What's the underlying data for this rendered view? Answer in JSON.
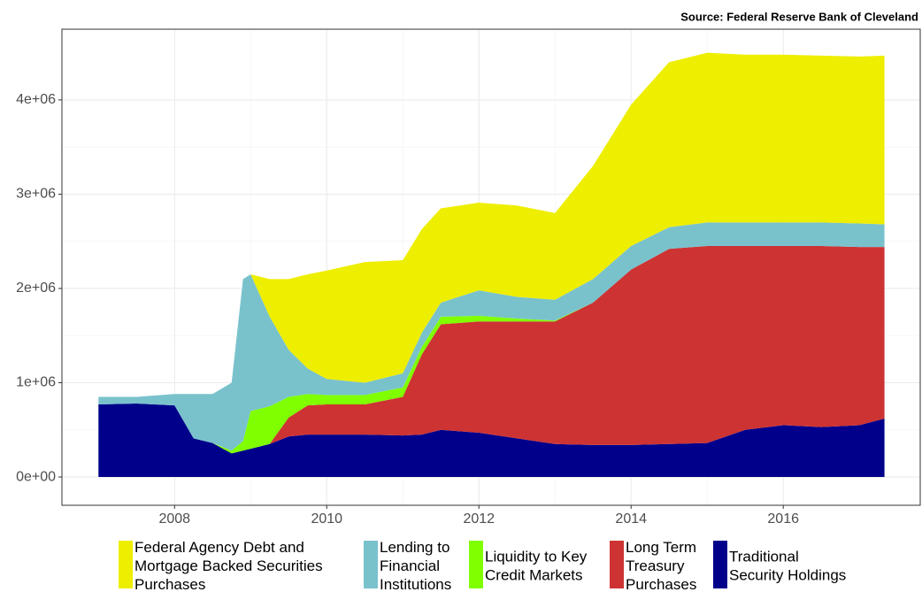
{
  "chart_data": {
    "type": "stacked_area",
    "source": "Source: Federal Reserve Bank of Cleveland",
    "x": [
      2007.0,
      2007.5,
      2008.0,
      2008.25,
      2008.5,
      2008.75,
      2008.9,
      2009.0,
      2009.25,
      2009.5,
      2009.75,
      2010.0,
      2010.5,
      2011.0,
      2011.25,
      2011.5,
      2012.0,
      2012.5,
      2013.0,
      2013.5,
      2014.0,
      2014.5,
      2015.0,
      2015.5,
      2016.0,
      2016.5,
      2017.0,
      2017.33
    ],
    "series": [
      {
        "name": "Traditional\nSecurity Holdings",
        "color": "#00008b",
        "values": [
          770000,
          780000,
          760000,
          410000,
          360000,
          250000,
          280000,
          300000,
          350000,
          430000,
          450000,
          450000,
          450000,
          440000,
          450000,
          500000,
          470000,
          410000,
          350000,
          340000,
          340000,
          350000,
          360000,
          500000,
          550000,
          530000,
          550000,
          620000
        ]
      },
      {
        "name": "Long Term\nTreasury\nPurchases",
        "color": "#cd3333",
        "values": [
          0,
          0,
          0,
          0,
          0,
          0,
          0,
          0,
          0,
          200000,
          310000,
          320000,
          320000,
          410000,
          850000,
          1120000,
          1180000,
          1240000,
          1300000,
          1510000,
          1860000,
          2070000,
          2090000,
          1950000,
          1900000,
          1920000,
          1890000,
          1820000
        ]
      },
      {
        "name": "Liquidity to Key\nCredit Markets",
        "color": "#7fff00",
        "values": [
          0,
          0,
          0,
          0,
          0,
          30000,
          100000,
          400000,
          400000,
          220000,
          120000,
          100000,
          100000,
          100000,
          80000,
          80000,
          60000,
          30000,
          10000,
          0,
          0,
          0,
          0,
          0,
          0,
          0,
          0,
          0
        ]
      },
      {
        "name": "Lending to\nFinancial\nInstitutions",
        "color": "#79c2cc",
        "values": [
          80000,
          70000,
          120000,
          470000,
          520000,
          720000,
          1720000,
          1450000,
          950000,
          500000,
          270000,
          170000,
          130000,
          150000,
          150000,
          150000,
          270000,
          230000,
          220000,
          250000,
          250000,
          230000,
          250000,
          250000,
          250000,
          250000,
          250000,
          240000
        ]
      },
      {
        "name": "Federal Agency Debt and\nMortgage Backed Securities\nPurchases",
        "color": "#eeee00",
        "values": [
          0,
          0,
          0,
          0,
          0,
          0,
          0,
          0,
          400000,
          750000,
          1000000,
          1150000,
          1280000,
          1200000,
          1100000,
          1000000,
          930000,
          970000,
          920000,
          1200000,
          1500000,
          1750000,
          1800000,
          1780000,
          1780000,
          1770000,
          1770000,
          1790000
        ]
      }
    ],
    "xlim": [
      2006.52,
      2017.8
    ],
    "xticks": [
      2008,
      2010,
      2012,
      2014,
      2016
    ],
    "ylim": [
      -300000,
      4750000
    ],
    "yticks": [
      {
        "value": 0,
        "label": "0e+00"
      },
      {
        "value": 1000000,
        "label": "1e+06"
      },
      {
        "value": 2000000,
        "label": "2e+06"
      },
      {
        "value": 3000000,
        "label": "3e+06"
      },
      {
        "value": 4000000,
        "label": "4e+06"
      }
    ],
    "grid": true,
    "legend": "bottom"
  }
}
